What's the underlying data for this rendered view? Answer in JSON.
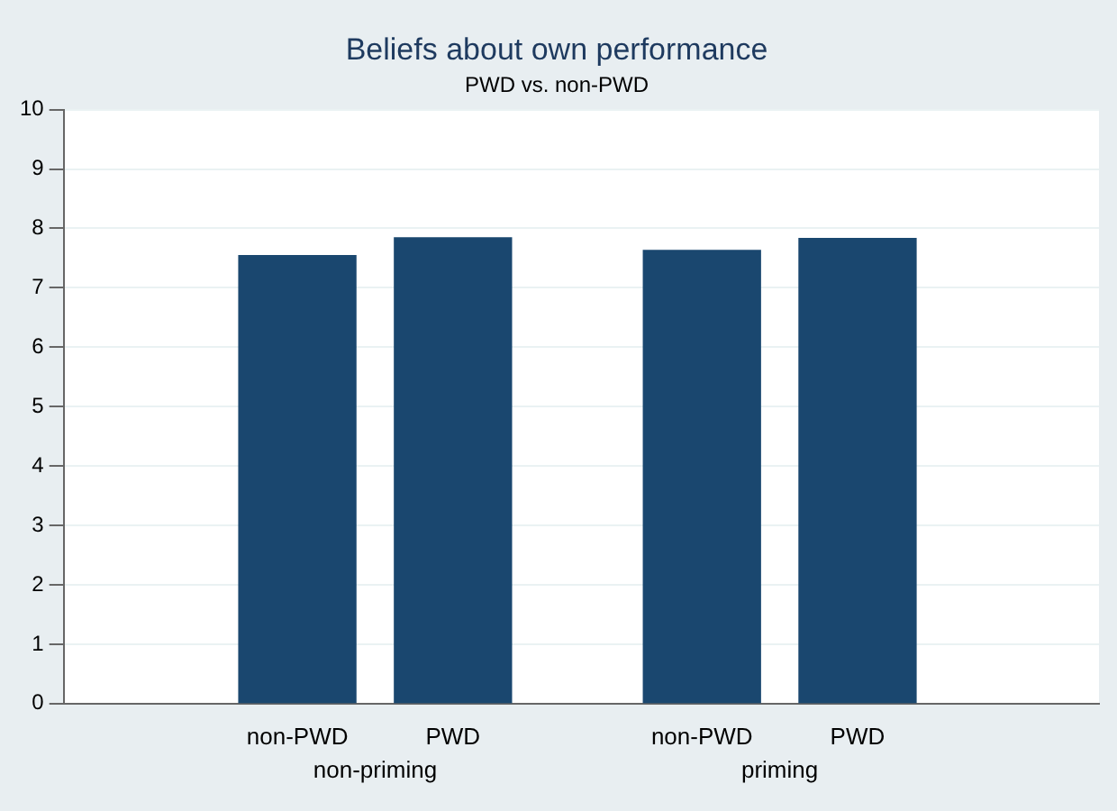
{
  "chart_data": {
    "type": "bar",
    "title": "Beliefs about own performance",
    "subtitle": "PWD vs. non-PWD",
    "categories": [
      "non-PWD",
      "PWD",
      "non-PWD",
      "PWD"
    ],
    "values": [
      7.54,
      7.84,
      7.63,
      7.83
    ],
    "color": "#1a476f",
    "annotations": [
      "non-priming",
      "priming"
    ],
    "ylim": [
      0,
      10
    ],
    "yticks": [
      0,
      1,
      2,
      3,
      4,
      5,
      6,
      7,
      8,
      9,
      10
    ],
    "grid": "y"
  }
}
